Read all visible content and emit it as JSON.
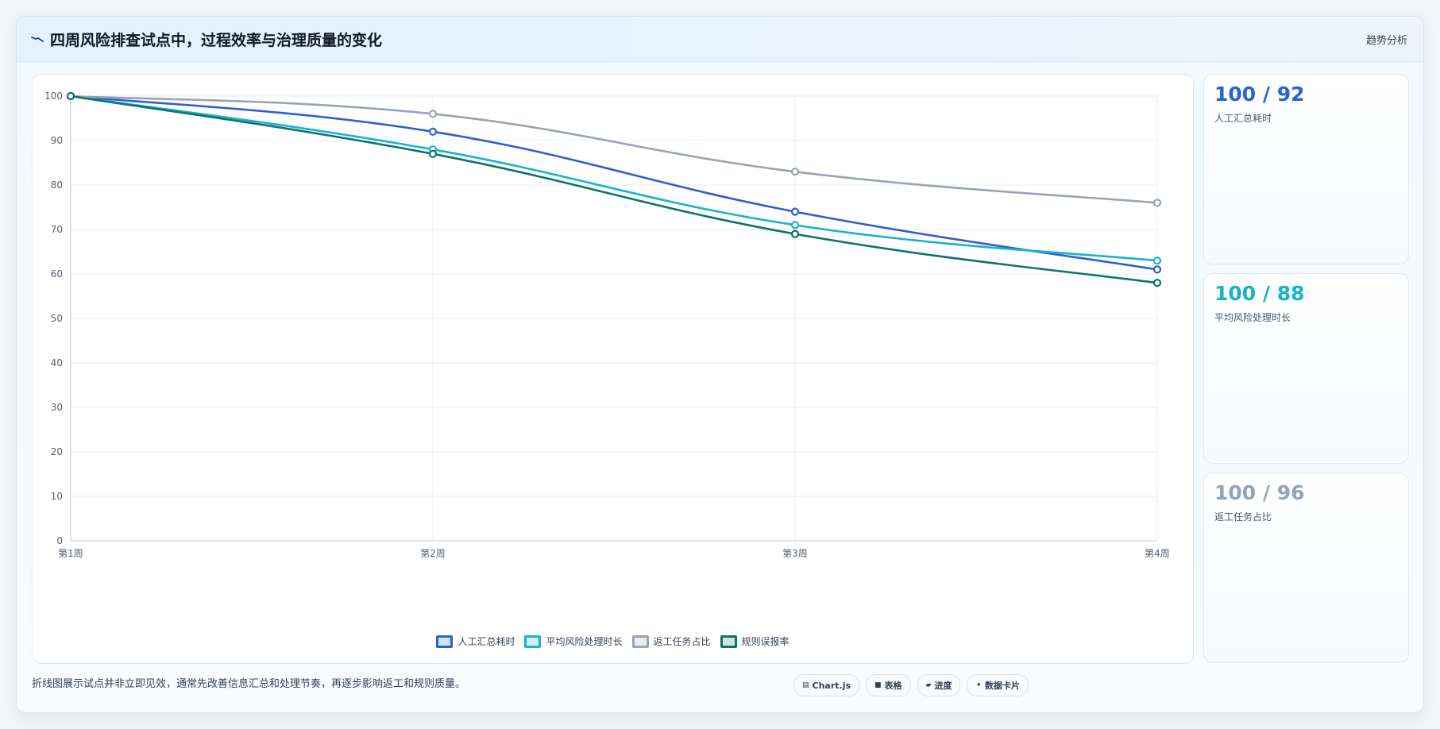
{
  "header": {
    "icon": "trend-down-icon",
    "title": "四周风险排查试点中，过程效率与治理质量的变化",
    "right_label": "趋势分析"
  },
  "kpis": [
    {
      "value": "100 / 92",
      "label": "人工汇总耗时",
      "color": "#2563d6"
    },
    {
      "value": "100 / 88",
      "label": "平均风险处理时长",
      "color": "#14b3cc"
    },
    {
      "value": "100 / 96",
      "label": "返工任务占比",
      "color": "#94a3b8"
    }
  ],
  "footer": {
    "note": "折线图展示试点并非立即见效，通常先改善信息汇总和处理节奏，再逐步影响返工和规则质量。",
    "chips": [
      {
        "icon": "chart-icon",
        "glyph": "▤",
        "label": "Chart.js"
      },
      {
        "icon": "table-icon",
        "glyph": "■",
        "label": "表格"
      },
      {
        "icon": "progress-icon",
        "glyph": "▰",
        "label": "进度"
      },
      {
        "icon": "data-card-icon",
        "glyph": "✦",
        "label": "数据卡片"
      }
    ]
  },
  "chart_data": {
    "type": "line",
    "categories": [
      "第1周",
      "第2周",
      "第3周",
      "第4周"
    ],
    "ylim": [
      0,
      100
    ],
    "yticks": [
      0,
      10,
      20,
      30,
      40,
      50,
      60,
      70,
      80,
      90,
      100
    ],
    "grid": true,
    "legend_position": "bottom",
    "series": [
      {
        "name": "人工汇总耗时",
        "color": "#2f5fd0",
        "values": [
          100,
          92,
          74,
          61
        ]
      },
      {
        "name": "平均风险处理时长",
        "color": "#17b3cf",
        "values": [
          100,
          88,
          71,
          63
        ]
      },
      {
        "name": "返工任务占比",
        "color": "#98a3b5",
        "values": [
          100,
          96,
          83,
          76
        ]
      },
      {
        "name": "规则误报率",
        "color": "#0f7468",
        "values": [
          100,
          87,
          69,
          58
        ]
      }
    ]
  }
}
